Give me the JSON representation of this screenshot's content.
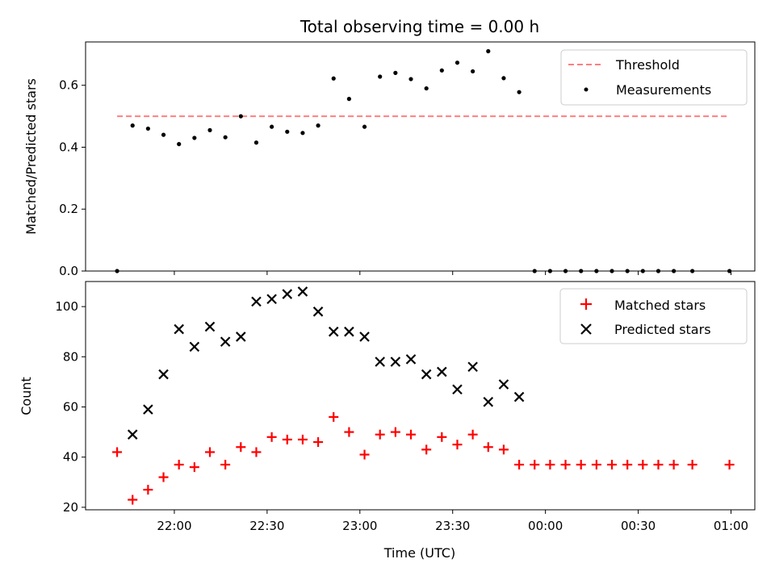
{
  "chart_data": {
    "title": "Total observing time = 0.00 h",
    "xlabel": "Time (UTC)",
    "x_ticks": [
      "22:00",
      "22:30",
      "23:00",
      "23:30",
      "00:00",
      "00:30",
      "01:00"
    ],
    "x_tick_minutes": [
      0,
      30,
      60,
      90,
      120,
      150,
      180
    ],
    "xlim_minutes": [
      -28.7,
      187.7
    ],
    "top": {
      "type": "scatter",
      "ylabel": "Matched/Predicted stars",
      "ylim": [
        0,
        0.74
      ],
      "y_ticks": [
        "0.0",
        "0.2",
        "0.4",
        "0.6"
      ],
      "y_tick_values": [
        0,
        0.2,
        0.4,
        0.6
      ],
      "threshold": {
        "name": "Threshold",
        "value": 0.5,
        "x_range_minutes": [
          -18.5,
          179.5
        ],
        "color": "#ff7f7f"
      },
      "measurements": {
        "name": "Measurements",
        "color": "#000000",
        "points": [
          [
            -18.5,
            0.0
          ],
          [
            -13.5,
            0.47
          ],
          [
            -8.5,
            0.46
          ],
          [
            -3.5,
            0.44
          ],
          [
            1.5,
            0.41
          ],
          [
            6.5,
            0.43
          ],
          [
            11.5,
            0.455
          ],
          [
            16.5,
            0.432
          ],
          [
            21.5,
            0.5
          ],
          [
            26.5,
            0.415
          ],
          [
            31.5,
            0.466
          ],
          [
            36.5,
            0.45
          ],
          [
            41.5,
            0.446
          ],
          [
            46.5,
            0.47
          ],
          [
            51.5,
            0.622
          ],
          [
            56.5,
            0.556
          ],
          [
            61.5,
            0.466
          ],
          [
            66.5,
            0.628
          ],
          [
            71.5,
            0.64
          ],
          [
            76.5,
            0.62
          ],
          [
            81.5,
            0.59
          ],
          [
            86.5,
            0.648
          ],
          [
            91.5,
            0.673
          ],
          [
            96.5,
            0.645
          ],
          [
            101.5,
            0.71
          ],
          [
            106.5,
            0.623
          ],
          [
            111.5,
            0.578
          ],
          [
            116.5,
            0.0
          ],
          [
            121.5,
            0.0
          ],
          [
            126.5,
            0.0
          ],
          [
            131.5,
            0.0
          ],
          [
            136.5,
            0.0
          ],
          [
            141.5,
            0.0
          ],
          [
            146.5,
            0.0
          ],
          [
            151.5,
            0.0
          ],
          [
            156.5,
            0.0
          ],
          [
            161.5,
            0.0
          ],
          [
            167.5,
            0.0
          ],
          [
            179.5,
            0.0
          ]
        ]
      },
      "legend": {
        "position": "top-right"
      }
    },
    "bottom": {
      "type": "scatter",
      "ylabel": "Count",
      "ylim": [
        19,
        110
      ],
      "y_ticks": [
        "20",
        "40",
        "60",
        "80",
        "100"
      ],
      "y_tick_values": [
        20,
        40,
        60,
        80,
        100
      ],
      "matched": {
        "name": "Matched stars",
        "color": "#ff0000",
        "marker": "plus",
        "points": [
          [
            -18.5,
            42
          ],
          [
            -13.5,
            23
          ],
          [
            -8.5,
            27
          ],
          [
            -3.5,
            32
          ],
          [
            1.5,
            37
          ],
          [
            6.5,
            36
          ],
          [
            11.5,
            42
          ],
          [
            16.5,
            37
          ],
          [
            21.5,
            44
          ],
          [
            26.5,
            42
          ],
          [
            31.5,
            48
          ],
          [
            36.5,
            47
          ],
          [
            41.5,
            47
          ],
          [
            46.5,
            46
          ],
          [
            51.5,
            56
          ],
          [
            56.5,
            50
          ],
          [
            61.5,
            41
          ],
          [
            66.5,
            49
          ],
          [
            71.5,
            50
          ],
          [
            76.5,
            49
          ],
          [
            81.5,
            43
          ],
          [
            86.5,
            48
          ],
          [
            91.5,
            45
          ],
          [
            96.5,
            49
          ],
          [
            101.5,
            44
          ],
          [
            106.5,
            43
          ],
          [
            111.5,
            37
          ],
          [
            116.5,
            37
          ],
          [
            121.5,
            37
          ],
          [
            126.5,
            37
          ],
          [
            131.5,
            37
          ],
          [
            136.5,
            37
          ],
          [
            141.5,
            37
          ],
          [
            146.5,
            37
          ],
          [
            151.5,
            37
          ],
          [
            156.5,
            37
          ],
          [
            161.5,
            37
          ],
          [
            167.5,
            37
          ],
          [
            179.5,
            37
          ]
        ]
      },
      "predicted": {
        "name": "Predicted stars",
        "color": "#000000",
        "marker": "x",
        "points": [
          [
            -13.5,
            49
          ],
          [
            -8.5,
            59
          ],
          [
            -3.5,
            73
          ],
          [
            1.5,
            91
          ],
          [
            6.5,
            84
          ],
          [
            11.5,
            92
          ],
          [
            16.5,
            86
          ],
          [
            21.5,
            88
          ],
          [
            26.5,
            102
          ],
          [
            31.5,
            103
          ],
          [
            36.5,
            105
          ],
          [
            41.5,
            106
          ],
          [
            46.5,
            98
          ],
          [
            51.5,
            90
          ],
          [
            56.5,
            90
          ],
          [
            61.5,
            88
          ],
          [
            66.5,
            78
          ],
          [
            71.5,
            78
          ],
          [
            76.5,
            79
          ],
          [
            81.5,
            73
          ],
          [
            86.5,
            74
          ],
          [
            91.5,
            67
          ],
          [
            96.5,
            76
          ],
          [
            101.5,
            62
          ],
          [
            106.5,
            69
          ],
          [
            111.5,
            64
          ]
        ]
      },
      "legend": {
        "position": "top-right"
      }
    }
  }
}
